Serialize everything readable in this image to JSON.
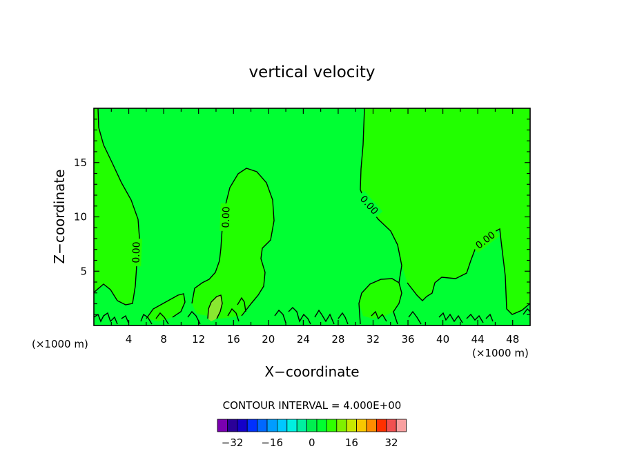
{
  "chart_data": {
    "type": "contour",
    "title": "vertical velocity",
    "xlabel": "X−coordinate",
    "ylabel": "Z−coordinate",
    "x_unit_left": "(×1000 m)",
    "x_unit_right": "(×1000 m)",
    "xlim": [
      0,
      50
    ],
    "ylim": [
      0,
      20
    ],
    "x_ticks": [
      4,
      8,
      12,
      16,
      20,
      24,
      28,
      32,
      36,
      40,
      44,
      48
    ],
    "y_ticks": [
      5,
      10,
      15
    ],
    "contour_label": "0.00",
    "contour_interval_text": "CONTOUR INTERVAL = 4.000E+00",
    "colorbar": {
      "levels": [
        -36,
        -32,
        -28,
        -24,
        -20,
        -16,
        -12,
        -8,
        -4,
        0,
        4,
        8,
        12,
        16,
        20,
        24,
        28,
        32,
        36
      ],
      "tick_labels": [
        -32,
        -16,
        0,
        16,
        32
      ],
      "colors": [
        "#7a00b0",
        "#2a0098",
        "#1400c8",
        "#0030ff",
        "#0068ff",
        "#009cff",
        "#00c8ff",
        "#00f0e0",
        "#00f0a0",
        "#00f050",
        "#00ff30",
        "#30ff00",
        "#80f000",
        "#c8e800",
        "#f8c800",
        "#ff8c00",
        "#ff3000",
        "#f05050",
        "#f8a0a0"
      ]
    },
    "regions": {
      "positive_color": "#22ff00",
      "negative_color": "#00ff33",
      "max_color": "#88e830"
    }
  }
}
